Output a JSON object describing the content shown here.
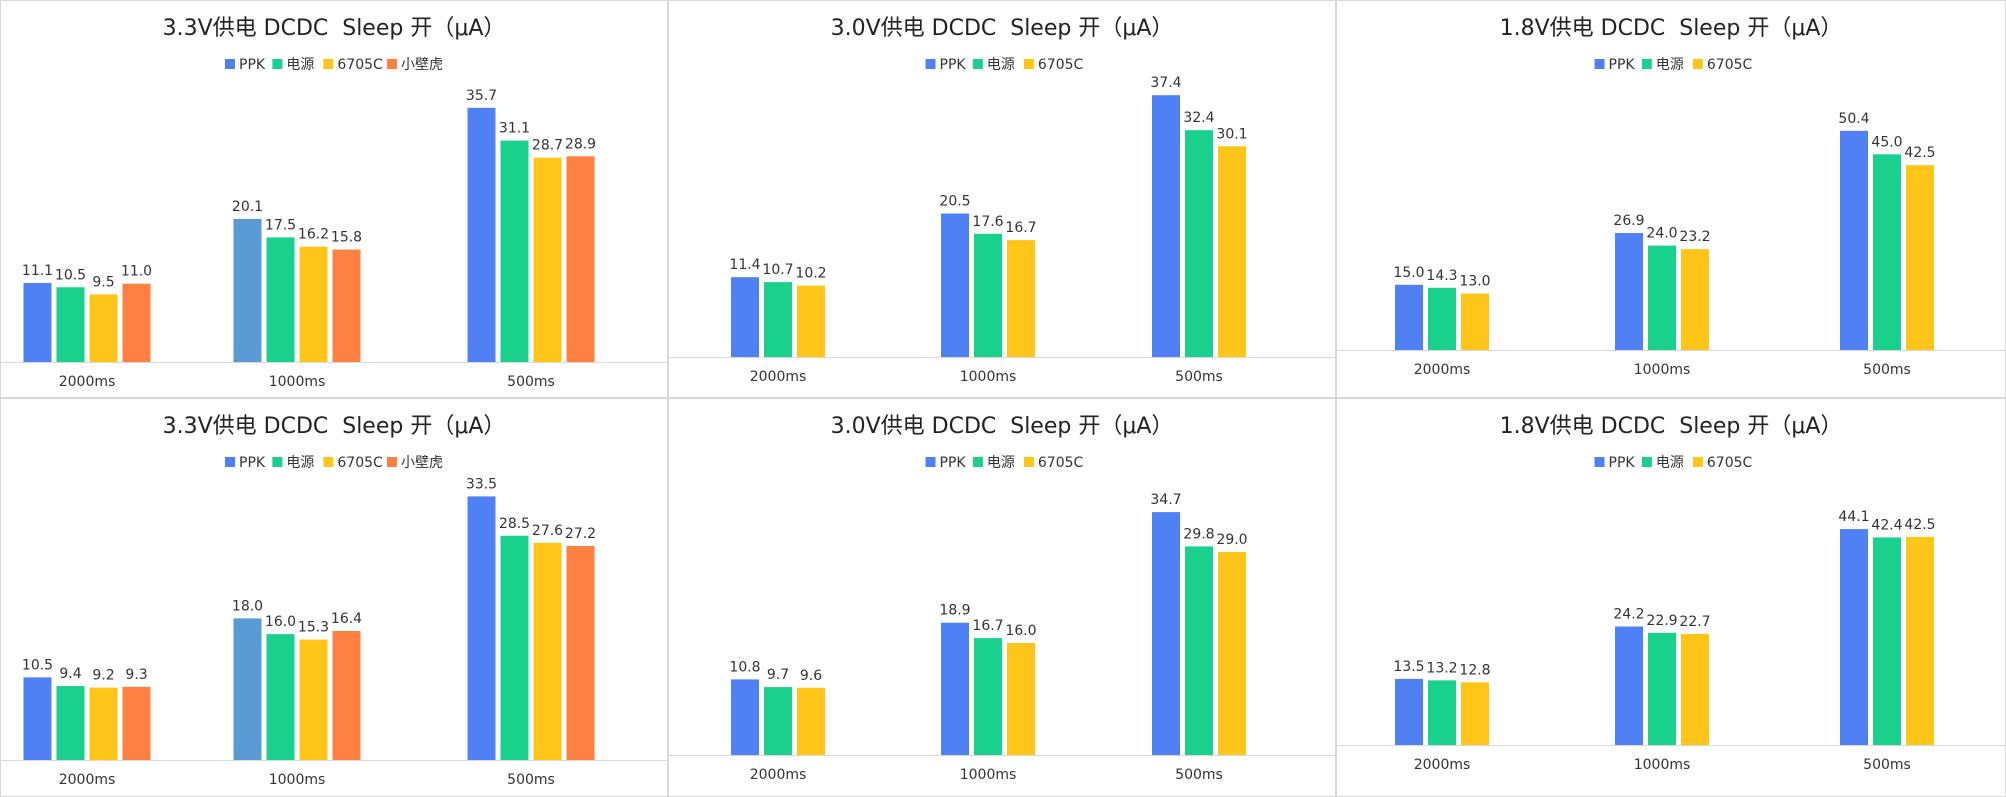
{
  "chart_data": [
    {
      "type": "bar",
      "title": "3.3V供电 DCDC  Sleep 开（μA）",
      "categories": [
        "2000ms",
        "1000ms",
        "500ms"
      ],
      "series": [
        {
          "name": "PPK",
          "color": "#4f81f5",
          "values": [
            11.1,
            20.1,
            35.7
          ]
        },
        {
          "name": "电源",
          "color": "#19d18d",
          "values": [
            10.5,
            17.5,
            31.1
          ]
        },
        {
          "name": "6705C",
          "color": "#ffc519",
          "values": [
            9.5,
            16.2,
            28.7
          ]
        },
        {
          "name": "小壁虎",
          "color": "#ff8043",
          "values": [
            11.0,
            15.8,
            28.9
          ]
        }
      ],
      "point_colors": {
        "0": {
          "1": "#5b9bd5"
        }
      },
      "ylim": [
        0,
        42
      ],
      "legend": "top",
      "grid": false
    },
    {
      "type": "bar",
      "title": "3.0V供电 DCDC  Sleep 开（μA）",
      "categories": [
        "2000ms",
        "1000ms",
        "500ms"
      ],
      "series": [
        {
          "name": "PPK",
          "color": "#4f81f5",
          "values": [
            11.4,
            20.5,
            37.4
          ]
        },
        {
          "name": "电源",
          "color": "#19d18d",
          "values": [
            10.7,
            17.6,
            32.4
          ]
        },
        {
          "name": "6705C",
          "color": "#ffc519",
          "values": [
            10.2,
            16.7,
            30.1
          ]
        }
      ],
      "ylim": [
        0,
        42
      ],
      "legend": "top",
      "grid": false
    },
    {
      "type": "bar",
      "title": "1.8V供电 DCDC  Sleep 开（μA）",
      "categories": [
        "2000ms",
        "1000ms",
        "500ms"
      ],
      "series": [
        {
          "name": "PPK",
          "color": "#4f81f5",
          "values": [
            15.0,
            26.9,
            50.4
          ]
        },
        {
          "name": "电源",
          "color": "#19d18d",
          "values": [
            14.3,
            24.0,
            45.0
          ]
        },
        {
          "name": "6705C",
          "color": "#ffc519",
          "values": [
            13.0,
            23.2,
            42.5
          ]
        }
      ],
      "ylim": [
        0,
        66
      ],
      "legend": "top",
      "grid": false
    },
    {
      "type": "bar",
      "title": "3.3V供电 DCDC  Sleep 开（μA）",
      "categories": [
        "2000ms",
        "1000ms",
        "500ms"
      ],
      "series": [
        {
          "name": "PPK",
          "color": "#4f81f5",
          "values": [
            10.5,
            18.0,
            33.5
          ]
        },
        {
          "name": "电源",
          "color": "#19d18d",
          "values": [
            9.4,
            16.0,
            28.5
          ]
        },
        {
          "name": "6705C",
          "color": "#ffc519",
          "values": [
            9.2,
            15.3,
            27.6
          ]
        },
        {
          "name": "小壁虎",
          "color": "#ff8043",
          "values": [
            9.3,
            16.4,
            27.2
          ]
        }
      ],
      "point_colors": {
        "0": {
          "1": "#5b9bd5"
        }
      },
      "ylim": [
        0,
        38
      ],
      "legend": "top",
      "grid": false
    },
    {
      "type": "bar",
      "title": "3.0V供电 DCDC  Sleep 开（μA）",
      "categories": [
        "2000ms",
        "1000ms",
        "500ms"
      ],
      "series": [
        {
          "name": "PPK",
          "color": "#4f81f5",
          "values": [
            10.8,
            18.9,
            34.7
          ]
        },
        {
          "name": "电源",
          "color": "#19d18d",
          "values": [
            9.7,
            16.7,
            29.8
          ]
        },
        {
          "name": "6705C",
          "color": "#ffc519",
          "values": [
            9.6,
            16.0,
            29.0
          ]
        }
      ],
      "ylim": [
        0,
        42
      ],
      "legend": "top",
      "grid": false
    },
    {
      "type": "bar",
      "title": "1.8V供电 DCDC  Sleep 开（μA）",
      "categories": [
        "2000ms",
        "1000ms",
        "500ms"
      ],
      "series": [
        {
          "name": "PPK",
          "color": "#4f81f5",
          "values": [
            13.5,
            24.2,
            44.1
          ]
        },
        {
          "name": "电源",
          "color": "#19d18d",
          "values": [
            13.2,
            22.9,
            42.4
          ]
        },
        {
          "name": "6705C",
          "color": "#ffc519",
          "values": [
            12.8,
            22.7,
            42.5
          ]
        }
      ],
      "ylim": [
        0,
        58
      ],
      "legend": "top",
      "grid": false
    }
  ]
}
